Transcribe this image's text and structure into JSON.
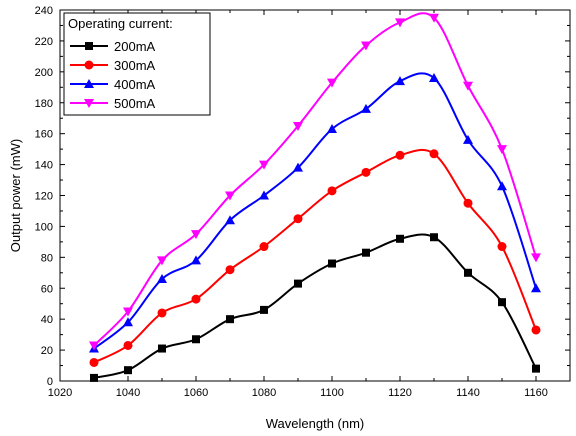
{
  "chart_data": {
    "type": "line",
    "xlabel": "Wavelength (nm)",
    "ylabel": "Output power (mW)",
    "xlim": [
      1020,
      1170
    ],
    "ylim": [
      0,
      240
    ],
    "x_ticks": [
      1020,
      1040,
      1060,
      1080,
      1100,
      1120,
      1140,
      1160
    ],
    "y_ticks": [
      0,
      20,
      40,
      60,
      80,
      100,
      120,
      140,
      160,
      180,
      200,
      220,
      240
    ],
    "grid": false,
    "legend": {
      "title": "Operating current:",
      "placement": "top-left"
    },
    "x": [
      1030,
      1040,
      1050,
      1060,
      1070,
      1080,
      1090,
      1100,
      1110,
      1120,
      1130,
      1140,
      1150,
      1160
    ],
    "series": [
      {
        "name": "200mA",
        "color": "#000000",
        "marker": "square",
        "values": [
          2,
          7,
          21,
          27,
          40,
          46,
          63,
          76,
          83,
          92,
          93,
          70,
          51,
          8
        ]
      },
      {
        "name": "300mA",
        "color": "#ff0000",
        "marker": "circle",
        "values": [
          12,
          23,
          44,
          53,
          72,
          87,
          105,
          123,
          135,
          146,
          147,
          115,
          87,
          33
        ]
      },
      {
        "name": "400mA",
        "color": "#0000ff",
        "marker": "triangle-up",
        "values": [
          21,
          38,
          66,
          78,
          104,
          120,
          138,
          163,
          176,
          194,
          196,
          156,
          126,
          60
        ]
      },
      {
        "name": "500mA",
        "color": "#ff00ff",
        "marker": "triangle-down",
        "values": [
          23,
          45,
          78,
          95,
          120,
          140,
          165,
          193,
          217,
          232,
          235,
          191,
          150,
          80
        ]
      }
    ]
  }
}
